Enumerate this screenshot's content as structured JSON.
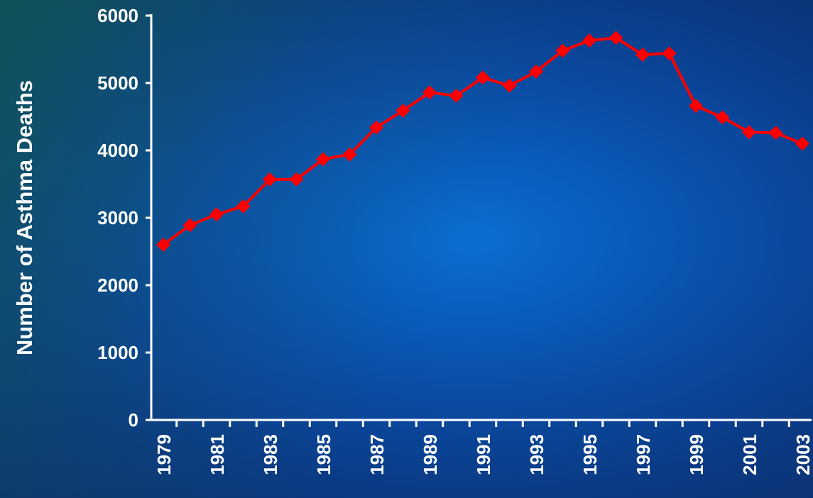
{
  "chart_data": {
    "type": "line",
    "ylabel": "Number of Asthma Deaths",
    "xlabel": "",
    "ylim": [
      0,
      6000
    ],
    "yticks": [
      "0",
      "1000",
      "2000",
      "3000",
      "4000",
      "5000",
      "6000"
    ],
    "x": [
      1979,
      1980,
      1981,
      1982,
      1983,
      1984,
      1985,
      1986,
      1987,
      1988,
      1989,
      1990,
      1991,
      1992,
      1993,
      1994,
      1995,
      1996,
      1997,
      1998,
      1999,
      2000,
      2001,
      2002,
      2003
    ],
    "xtick_labels": [
      "1979",
      "1981",
      "1983",
      "1985",
      "1987",
      "1989",
      "1991",
      "1993",
      "1995",
      "1997",
      "1999",
      "2001",
      "2003"
    ],
    "series": [
      {
        "values": [
          2600,
          2890,
          3050,
          3170,
          3570,
          3570,
          3870,
          3940,
          4340,
          4590,
          4860,
          4810,
          5080,
          4960,
          5170,
          5480,
          5630,
          5670,
          5420,
          5440,
          4660,
          4490,
          4270,
          4260,
          4100
        ]
      }
    ],
    "colors": {
      "line": "#ff0000",
      "marker": "#ff0000",
      "axis": "#ffffff",
      "text": "#ffffff"
    },
    "grid": false,
    "marker": "diamond"
  }
}
